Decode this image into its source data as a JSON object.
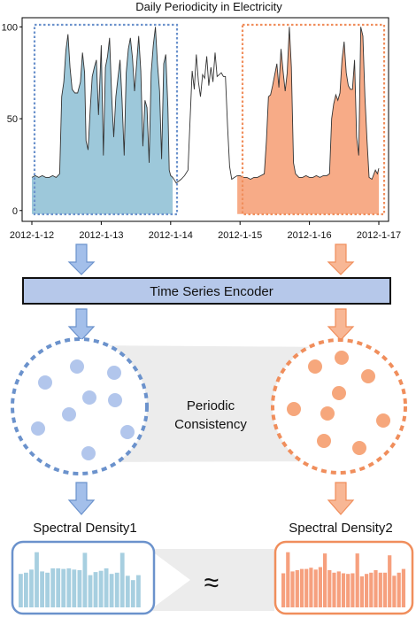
{
  "chart_data": {
    "type": "area",
    "title": "Daily Periodicity in Electricity",
    "xlabel": "",
    "ylabel": "",
    "x_ticks": [
      "2012-1-12",
      "2012-1-13",
      "2012-1-14",
      "2012-1-15",
      "2012-1-16",
      "2012-1-17"
    ],
    "y_ticks": [
      "0",
      "50",
      "100"
    ],
    "ylim": [
      -3,
      105
    ],
    "xlim": [
      0,
      5
    ],
    "grid": false,
    "series": [
      {
        "color": "#9dc8da",
        "values": [
          [
            0.0,
            18
          ],
          [
            0.05,
            19
          ],
          [
            0.1,
            18
          ],
          [
            0.15,
            19
          ],
          [
            0.2,
            18
          ],
          [
            0.25,
            18
          ],
          [
            0.3,
            19
          ],
          [
            0.35,
            18
          ],
          [
            0.4,
            20
          ],
          [
            0.43,
            62
          ],
          [
            0.46,
            70
          ],
          [
            0.49,
            87
          ],
          [
            0.52,
            96
          ],
          [
            0.55,
            78
          ],
          [
            0.58,
            66
          ],
          [
            0.62,
            64
          ],
          [
            0.66,
            64
          ],
          [
            0.7,
            70
          ],
          [
            0.73,
            86
          ],
          [
            0.76,
            75
          ],
          [
            0.78,
            38
          ],
          [
            0.81,
            33
          ],
          [
            0.84,
            55
          ],
          [
            0.87,
            73
          ],
          [
            0.9,
            78
          ],
          [
            0.93,
            82
          ],
          [
            0.96,
            52
          ],
          [
            1.0,
            90
          ],
          [
            1.03,
            30
          ],
          [
            1.06,
            78
          ],
          [
            1.09,
            84
          ],
          [
            1.12,
            94
          ],
          [
            1.15,
            62
          ],
          [
            1.18,
            40
          ],
          [
            1.21,
            62
          ],
          [
            1.24,
            72
          ],
          [
            1.27,
            82
          ],
          [
            1.3,
            60
          ],
          [
            1.33,
            30
          ],
          [
            1.36,
            75
          ],
          [
            1.39,
            88
          ],
          [
            1.42,
            94
          ],
          [
            1.45,
            83
          ],
          [
            1.48,
            65
          ],
          [
            1.51,
            80
          ],
          [
            1.54,
            95
          ],
          [
            1.57,
            76
          ],
          [
            1.6,
            35
          ],
          [
            1.63,
            60
          ],
          [
            1.66,
            56
          ],
          [
            1.69,
            26
          ],
          [
            1.72,
            75
          ],
          [
            1.75,
            90
          ],
          [
            1.78,
            100
          ],
          [
            1.81,
            80
          ],
          [
            1.84,
            65
          ],
          [
            1.87,
            28
          ],
          [
            1.9,
            80
          ],
          [
            1.93,
            85
          ],
          [
            1.96,
            56
          ],
          [
            1.98,
            22
          ],
          [
            2.0,
            19
          ],
          [
            2.03,
            18
          ]
        ]
      },
      {
        "color": "#ffffff",
        "values": [
          [
            2.03,
            18
          ],
          [
            2.08,
            15
          ],
          [
            2.15,
            17
          ],
          [
            2.2,
            19
          ],
          [
            2.25,
            22
          ],
          [
            2.28,
            50
          ],
          [
            2.31,
            76
          ],
          [
            2.34,
            66
          ],
          [
            2.37,
            85
          ],
          [
            2.4,
            70
          ],
          [
            2.43,
            62
          ],
          [
            2.46,
            74
          ],
          [
            2.49,
            72
          ],
          [
            2.52,
            84
          ],
          [
            2.55,
            68
          ],
          [
            2.58,
            78
          ],
          [
            2.61,
            70
          ],
          [
            2.64,
            86
          ],
          [
            2.67,
            73
          ],
          [
            2.7,
            74
          ],
          [
            2.73,
            75
          ],
          [
            2.76,
            73
          ],
          [
            2.79,
            73
          ],
          [
            2.82,
            46
          ],
          [
            2.85,
            24
          ],
          [
            2.88,
            17
          ],
          [
            2.92,
            18
          ],
          [
            2.96,
            19
          ]
        ]
      },
      {
        "color": "#f7ab87",
        "values": [
          [
            2.96,
            19
          ],
          [
            3.0,
            19
          ],
          [
            3.05,
            18
          ],
          [
            3.1,
            18
          ],
          [
            3.15,
            17
          ],
          [
            3.2,
            18
          ],
          [
            3.25,
            18
          ],
          [
            3.3,
            19
          ],
          [
            3.35,
            20
          ],
          [
            3.38,
            38
          ],
          [
            3.41,
            62
          ],
          [
            3.44,
            63
          ],
          [
            3.47,
            68
          ],
          [
            3.5,
            74
          ],
          [
            3.53,
            80
          ],
          [
            3.56,
            67
          ],
          [
            3.59,
            88
          ],
          [
            3.62,
            76
          ],
          [
            3.65,
            65
          ],
          [
            3.68,
            75
          ],
          [
            3.71,
            100
          ],
          [
            3.74,
            78
          ],
          [
            3.77,
            26
          ],
          [
            3.8,
            20
          ],
          [
            3.85,
            18
          ],
          [
            3.9,
            18
          ],
          [
            3.95,
            19
          ],
          [
            4.0,
            18
          ],
          [
            4.05,
            18
          ],
          [
            4.1,
            19
          ],
          [
            4.15,
            18
          ],
          [
            4.2,
            19
          ],
          [
            4.25,
            19
          ],
          [
            4.29,
            20
          ],
          [
            4.32,
            50
          ],
          [
            4.35,
            58
          ],
          [
            4.38,
            63
          ],
          [
            4.41,
            60
          ],
          [
            4.44,
            64
          ],
          [
            4.47,
            82
          ],
          [
            4.5,
            92
          ],
          [
            4.53,
            75
          ],
          [
            4.56,
            68
          ],
          [
            4.59,
            66
          ],
          [
            4.62,
            66
          ],
          [
            4.65,
            82
          ],
          [
            4.68,
            40
          ],
          [
            4.71,
            30
          ],
          [
            4.74,
            100
          ],
          [
            4.77,
            95
          ],
          [
            4.8,
            62
          ],
          [
            4.83,
            38
          ],
          [
            4.86,
            18
          ],
          [
            4.9,
            17
          ],
          [
            4.95,
            22
          ],
          [
            4.98,
            20
          ],
          [
            5.0,
            23
          ]
        ]
      }
    ]
  },
  "diagram": {
    "encoder_label": "Time Series Encoder",
    "consistency_label_line1": "Periodic",
    "consistency_label_line2": "Consistency",
    "left_density_label": "Spectral Density1",
    "right_density_label": "Spectral Density2",
    "approx_symbol": "≈",
    "colors": {
      "blue_fill": "#9dc8da",
      "orange_fill": "#f7ab87",
      "blue_dot": "#b2c6ec",
      "orange_dot": "#f6a77c",
      "blue_outline": "#6b92cc",
      "orange_outline": "#f08e5c",
      "encoder_fill": "#b6c8ea",
      "arrow_blue": "#a3bfea",
      "arrow_orange": "#f8b795",
      "bar_blue": "#a7cfe0",
      "bar_orange": "#f6a07e"
    },
    "left_bars": [
      0.54,
      0.56,
      0.61,
      0.89,
      0.58,
      0.56,
      0.63,
      0.63,
      0.62,
      0.63,
      0.61,
      0.6,
      0.88,
      0.52,
      0.57,
      0.59,
      0.63,
      0.54,
      0.56,
      0.88,
      0.51,
      0.44,
      0.52
    ],
    "right_bars": [
      0.55,
      0.89,
      0.58,
      0.6,
      0.62,
      0.62,
      0.64,
      0.61,
      0.65,
      0.87,
      0.6,
      0.56,
      0.58,
      0.55,
      0.54,
      0.55,
      0.87,
      0.5,
      0.54,
      0.56,
      0.6,
      0.56,
      0.56,
      0.84,
      0.51,
      0.56,
      0.62
    ]
  }
}
